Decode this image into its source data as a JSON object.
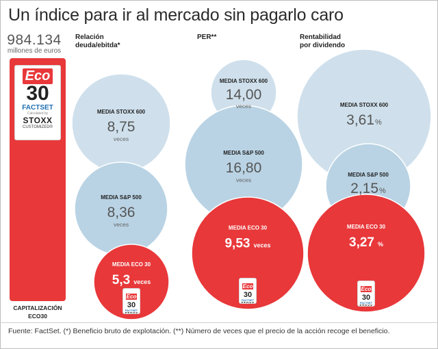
{
  "title": "Un índice para ir al mercado  sin pagarlo caro",
  "capitalization": {
    "value": "984.134",
    "unit": "millones de euros",
    "label_line1": "CAPITALIZACIÓN",
    "label_line2": "ECO30"
  },
  "logo": {
    "eco": "Eco",
    "number": "30",
    "factset": "FACTSET",
    "calculated_by": "Calculated by",
    "stoxx": "STOXX",
    "customized": "CUSTOMIZED®"
  },
  "columns": [
    {
      "header_line1": "Relación",
      "header_line2": "deuda/ebitda*"
    },
    {
      "header_line1": "PER**",
      "header_line2": ""
    },
    {
      "header_line1": "Rentabilidad",
      "header_line2": "por dividendo"
    }
  ],
  "chart_data": {
    "type": "bubble",
    "title": "Un índice para ir al mercado  sin pagarlo caro",
    "groups": [
      {
        "name": "Relación deuda/ebitda*",
        "bubbles": [
          {
            "label": "MEDIA STOXX 600",
            "value": 8.75,
            "display": "8,75",
            "unit": "veces"
          },
          {
            "label": "MEDIA S&P 500",
            "value": 8.36,
            "display": "8,36",
            "unit": "veces"
          },
          {
            "label": "MEDIA ECO 30",
            "value": 5.3,
            "display": "5,3",
            "unit": "veces"
          }
        ]
      },
      {
        "name": "PER**",
        "bubbles": [
          {
            "label": "MEDIA STOXX 600",
            "value": 14.0,
            "display": "14,00",
            "unit": "veces"
          },
          {
            "label": "MEDIA S&P 500",
            "value": 16.8,
            "display": "16,80",
            "unit": "veces"
          },
          {
            "label": "MEDIA ECO 30",
            "value": 9.53,
            "display": "9,53",
            "unit": "veces"
          }
        ]
      },
      {
        "name": "Rentabilidad por dividendo",
        "bubbles": [
          {
            "label": "MEDIA STOXX 600",
            "value": 3.61,
            "display": "3,61",
            "unit": "%"
          },
          {
            "label": "MEDIA S&P 500",
            "value": 2.15,
            "display": "2,15",
            "unit": "%"
          },
          {
            "label": "MEDIA ECO 30",
            "value": 3.27,
            "display": "3,27",
            "unit": "%"
          }
        ]
      }
    ],
    "colors": {
      "stoxx": "#cfe0ec",
      "sp": "#b9d3e4",
      "eco": "#e8383a"
    }
  },
  "footer": "Fuente: FactSet. (*) Beneficio bruto de explotación. (**) Número de veces que el precio de la acción recoge el beneficio."
}
